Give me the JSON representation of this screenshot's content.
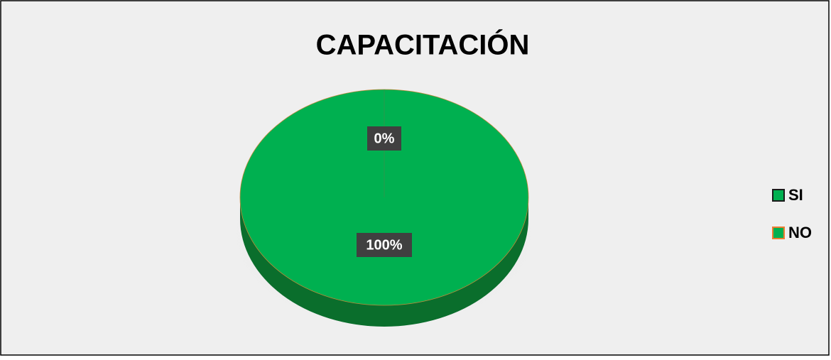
{
  "chart_data": {
    "type": "pie",
    "title": "CAPACITACIÓN",
    "categories": [
      "SI",
      "NO"
    ],
    "values": [
      100,
      0
    ],
    "value_labels": [
      "100%",
      "0%"
    ],
    "colors": [
      "#00b050",
      "#ed7d31"
    ],
    "legend": "right"
  }
}
